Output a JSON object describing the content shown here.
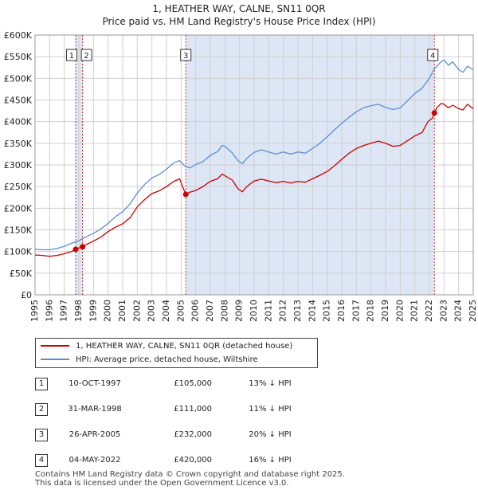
{
  "title": "1, HEATHER WAY, CALNE, SN11 0QR",
  "subtitle": "Price paid vs. HM Land Registry's House Price Index (HPI)",
  "colors": {
    "property_line": "#cc0000",
    "hpi_line": "#5b8fd1",
    "shade": "#dde6f5",
    "grid": "#d0d0d0",
    "marker_line": "#cc0000"
  },
  "chart_data": {
    "type": "line",
    "title": "1, HEATHER WAY, CALNE, SN11 0QR",
    "subtitle": "Price paid vs. HM Land Registry's House Price Index (HPI)",
    "xlim": [
      1995,
      2025
    ],
    "ylim": [
      0,
      600000
    ],
    "x_ticks": [
      1995,
      1996,
      1997,
      1998,
      1999,
      2000,
      2001,
      2002,
      2003,
      2004,
      2005,
      2006,
      2007,
      2008,
      2009,
      2010,
      2011,
      2012,
      2013,
      2014,
      2015,
      2016,
      2017,
      2018,
      2019,
      2020,
      2021,
      2022,
      2023,
      2024,
      2025
    ],
    "y_ticks": [
      0,
      50000,
      100000,
      150000,
      200000,
      250000,
      300000,
      350000,
      400000,
      450000,
      500000,
      550000,
      600000
    ],
    "y_tick_labels": [
      "£0",
      "£50K",
      "£100K",
      "£150K",
      "£200K",
      "£250K",
      "£300K",
      "£350K",
      "£400K",
      "£450K",
      "£500K",
      "£550K",
      "£600K"
    ],
    "grid": true,
    "shaded_ranges": [
      [
        1997.78,
        1998.25
      ],
      [
        2005.32,
        2022.34
      ]
    ],
    "series": [
      {
        "name": "1, HEATHER WAY, CALNE, SN11 0QR (detached house)",
        "x": [
          1995,
          1995.5,
          1996,
          1996.5,
          1997,
          1997.5,
          1997.78,
          1998,
          1998.25,
          1998.5,
          1999,
          1999.5,
          2000,
          2000.5,
          2001,
          2001.5,
          2002,
          2002.5,
          2003,
          2003.5,
          2004,
          2004.5,
          2004.9,
          2005.1,
          2005.32,
          2005.6,
          2006,
          2006.5,
          2007,
          2007.5,
          2007.8,
          2008,
          2008.5,
          2008.9,
          2009.2,
          2009.5,
          2010,
          2010.5,
          2011,
          2011.5,
          2012,
          2012.5,
          2013,
          2013.5,
          2014,
          2014.5,
          2015,
          2015.5,
          2016,
          2016.5,
          2017,
          2017.5,
          2018,
          2018.5,
          2019,
          2019.5,
          2020,
          2020.5,
          2021,
          2021.5,
          2021.9,
          2022.2,
          2022.34,
          2022.5,
          2022.8,
          2023,
          2023.3,
          2023.6,
          2024,
          2024.3,
          2024.6,
          2025
        ],
        "values": [
          92000,
          91000,
          89000,
          91000,
          95000,
          100000,
          105000,
          108000,
          111000,
          116000,
          124000,
          133000,
          146000,
          156000,
          164000,
          178000,
          203000,
          220000,
          234000,
          240000,
          250000,
          262000,
          268000,
          250000,
          232000,
          237000,
          241000,
          250000,
          262000,
          268000,
          279000,
          275000,
          265000,
          245000,
          238000,
          250000,
          263000,
          267000,
          263000,
          259000,
          262000,
          258000,
          262000,
          260000,
          268000,
          276000,
          285000,
          298000,
          313000,
          327000,
          338000,
          345000,
          350000,
          355000,
          350000,
          343000,
          345000,
          356000,
          367000,
          375000,
          400000,
          408000,
          420000,
          432000,
          442000,
          440000,
          432000,
          438000,
          430000,
          427000,
          440000,
          430000
        ]
      },
      {
        "name": "HPI: Average price, detached house, Wiltshire",
        "x": [
          1995,
          1995.5,
          1996,
          1996.5,
          1997,
          1997.5,
          1998,
          1998.5,
          1999,
          1999.5,
          2000,
          2000.5,
          2001,
          2001.5,
          2002,
          2002.5,
          2003,
          2003.5,
          2004,
          2004.5,
          2004.9,
          2005.3,
          2005.6,
          2006,
          2006.5,
          2007,
          2007.5,
          2007.8,
          2008,
          2008.5,
          2008.9,
          2009.2,
          2009.5,
          2010,
          2010.5,
          2011,
          2011.5,
          2012,
          2012.5,
          2013,
          2013.5,
          2014,
          2014.5,
          2015,
          2015.5,
          2016,
          2016.5,
          2017,
          2017.5,
          2018,
          2018.5,
          2019,
          2019.5,
          2020,
          2020.5,
          2021,
          2021.5,
          2022,
          2022.3,
          2022.7,
          2023,
          2023.3,
          2023.6,
          2024,
          2024.3,
          2024.6,
          2025
        ],
        "values": [
          105000,
          104000,
          104000,
          107000,
          112000,
          119000,
          125000,
          134000,
          142000,
          152000,
          165000,
          180000,
          192000,
          210000,
          235000,
          255000,
          270000,
          278000,
          290000,
          305000,
          310000,
          296000,
          293000,
          301000,
          308000,
          322000,
          331000,
          345000,
          343000,
          328000,
          310000,
          303000,
          315000,
          329000,
          335000,
          330000,
          325000,
          330000,
          325000,
          330000,
          327000,
          338000,
          350000,
          365000,
          381000,
          396000,
          410000,
          423000,
          432000,
          437000,
          440000,
          433000,
          428000,
          432000,
          448000,
          465000,
          477000,
          500000,
          520000,
          535000,
          543000,
          530000,
          538000,
          520000,
          514000,
          528000,
          520000
        ]
      }
    ],
    "sales": [
      {
        "label": "1",
        "x": 1997.78,
        "value": 105000
      },
      {
        "label": "2",
        "x": 1998.25,
        "value": 111000
      },
      {
        "label": "3",
        "x": 2005.32,
        "value": 232000
      },
      {
        "label": "4",
        "x": 2022.34,
        "value": 420000
      }
    ]
  },
  "legend": {
    "property": "1, HEATHER WAY, CALNE, SN11 0QR (detached house)",
    "hpi": "HPI: Average price, detached house, Wiltshire"
  },
  "sales_table": [
    {
      "num": "1",
      "date": "10-OCT-1997",
      "price": "£105,000",
      "hpi": "13% ↓ HPI"
    },
    {
      "num": "2",
      "date": "31-MAR-1998",
      "price": "£111,000",
      "hpi": "11% ↓ HPI"
    },
    {
      "num": "3",
      "date": "26-APR-2005",
      "price": "£232,000",
      "hpi": "20% ↓ HPI"
    },
    {
      "num": "4",
      "date": "04-MAY-2022",
      "price": "£420,000",
      "hpi": "16% ↓ HPI"
    }
  ],
  "footer": {
    "line1": "Contains HM Land Registry data © Crown copyright and database right 2025.",
    "line2": "This data is licensed under the Open Government Licence v3.0."
  }
}
